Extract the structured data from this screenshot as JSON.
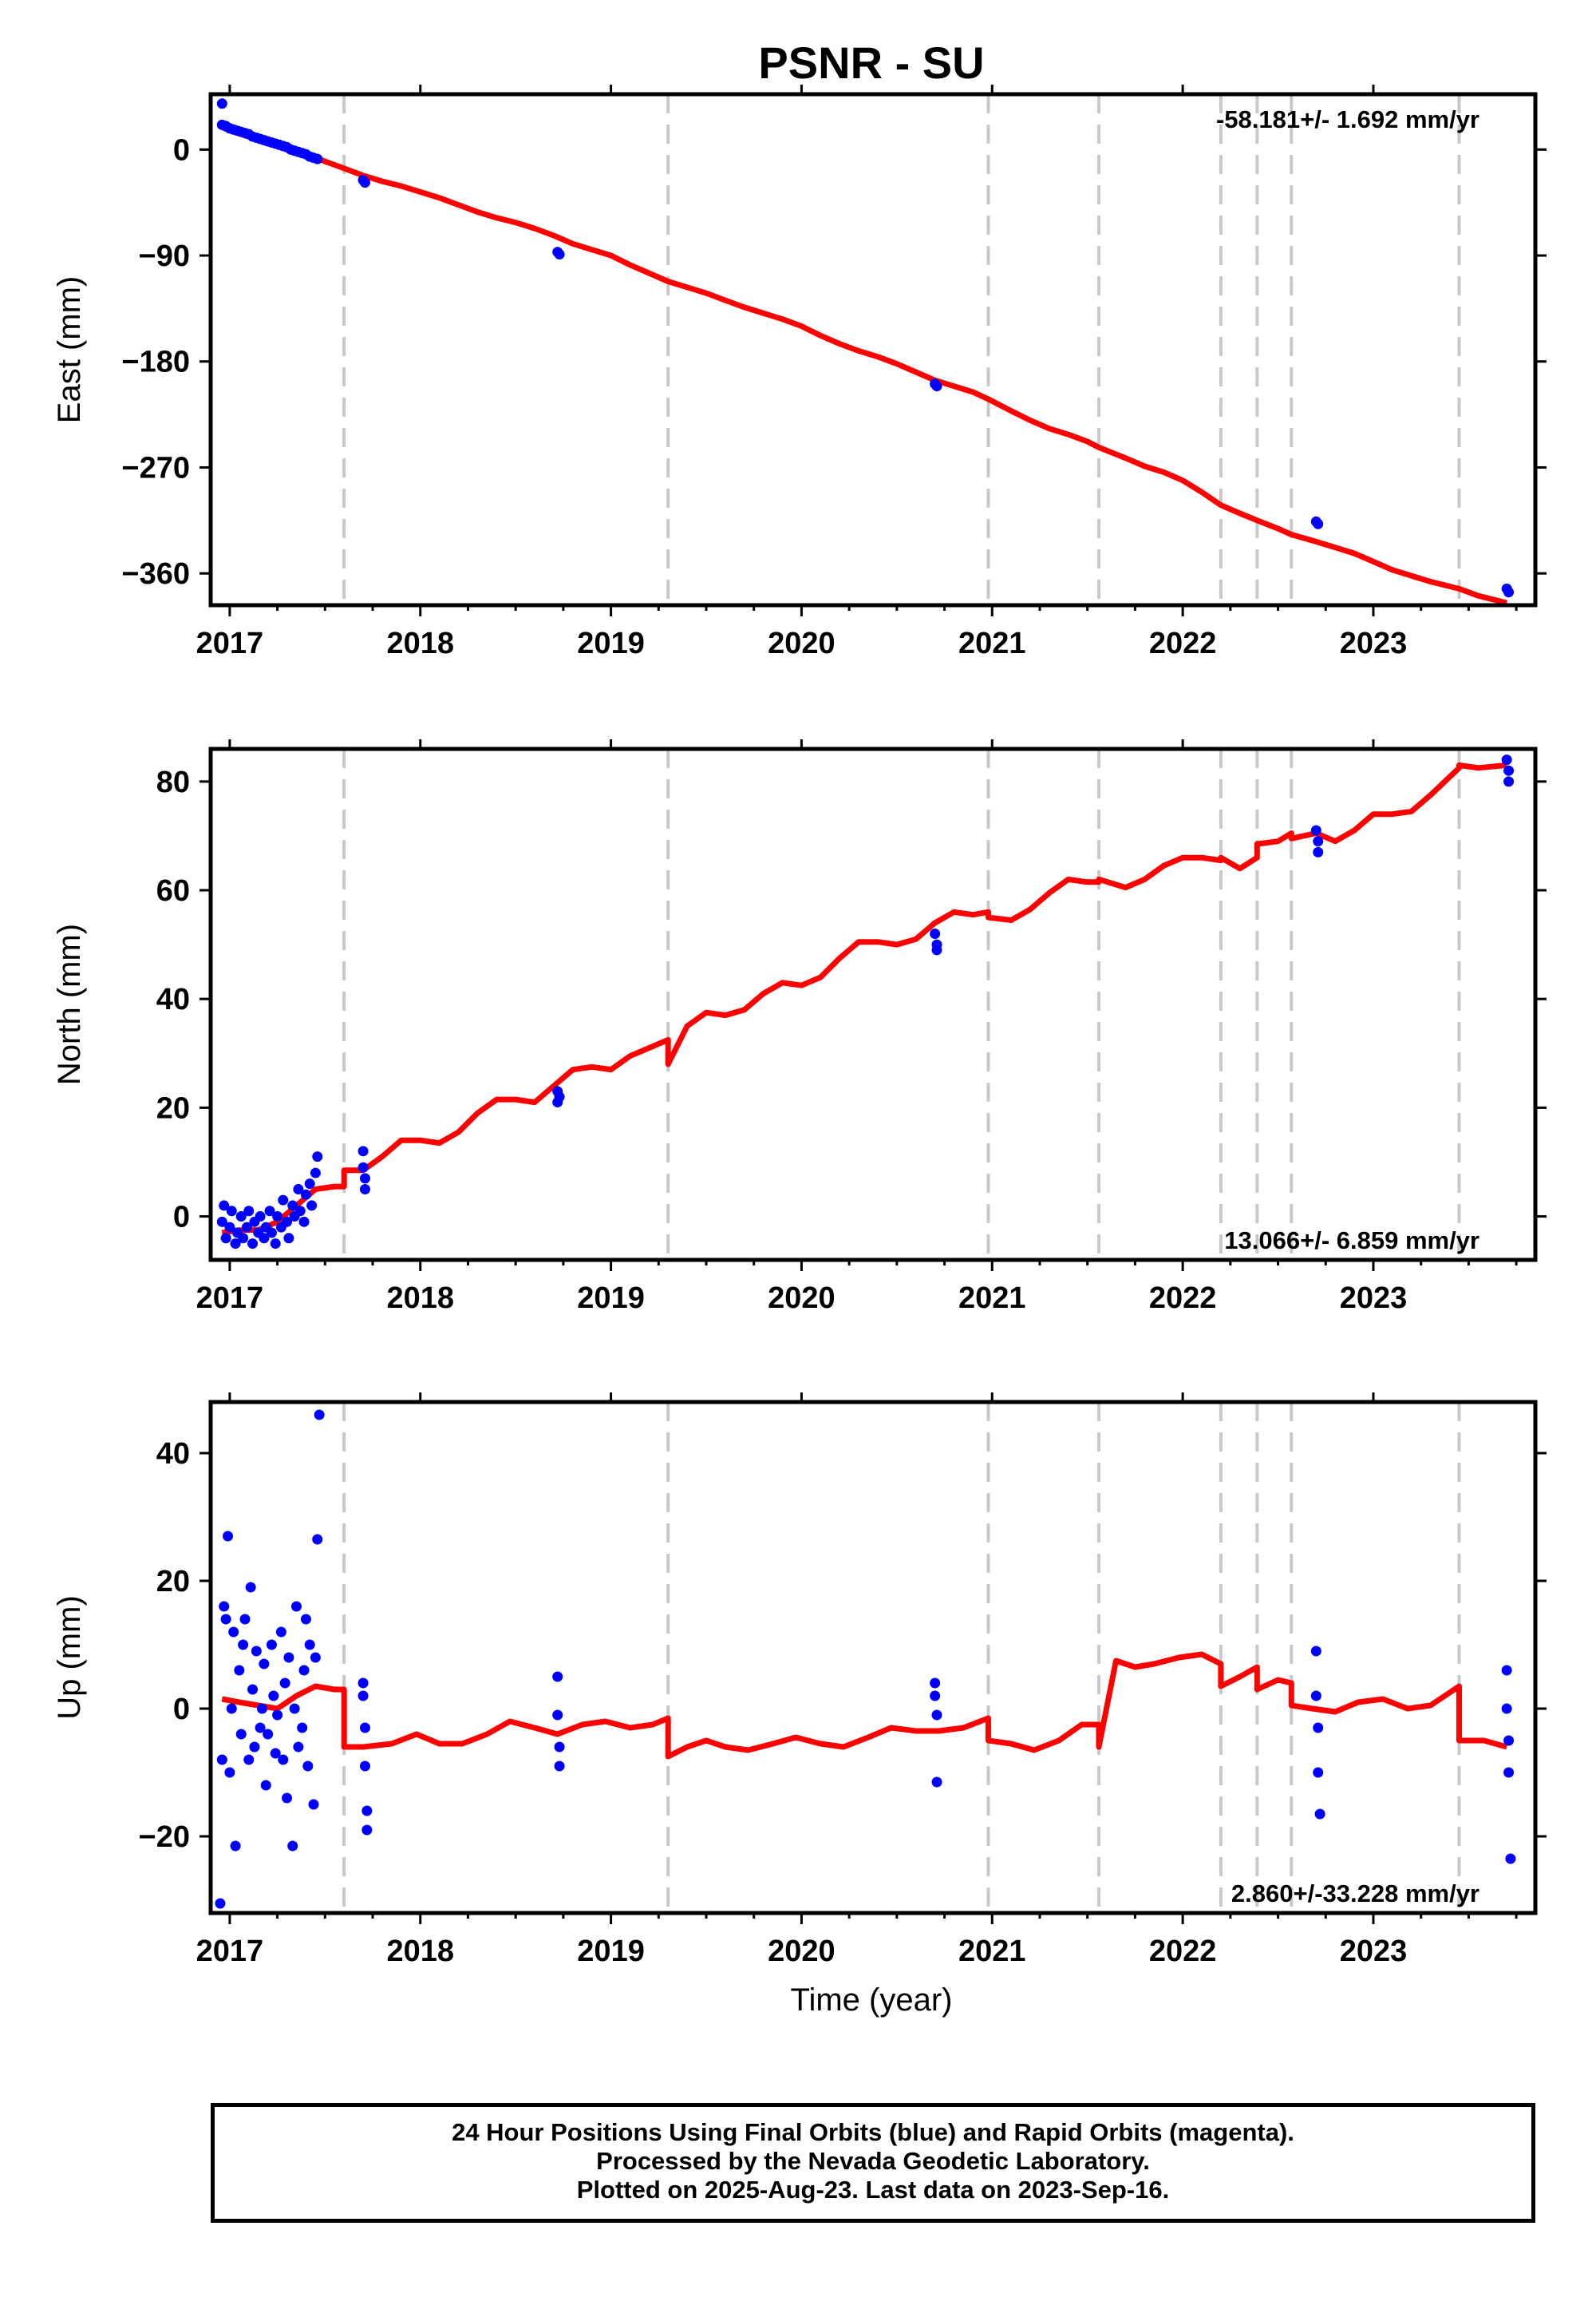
{
  "figure": {
    "title": "PSNR - SU",
    "xlabel": "Time (year)",
    "caption": [
      "24 Hour Positions Using Final Orbits (blue) and Rapid Orbits (magenta).",
      "Processed by the Nevada Geodetic Laboratory.",
      "Plotted on 2025-Aug-23. Last data on 2023-Sep-16."
    ],
    "colors": {
      "final": "#0000ff",
      "model": "#ff0000",
      "event": "#c8c8c8",
      "frame": "#000000"
    }
  },
  "chart_data": [
    {
      "type": "scatter",
      "ylabel": "East (mm)",
      "rate_text": "-58.181+/- 1.692 mm/yr",
      "rate_position": "top-right",
      "xlim": [
        2016.9,
        2023.85
      ],
      "ylim": [
        -387,
        47
      ],
      "xticks": [
        2017,
        2018,
        2019,
        2020,
        2021,
        2022,
        2023
      ],
      "xtick_labels": [
        "2017",
        "2018",
        "2019",
        "2020",
        "2021",
        "2022",
        "2023"
      ],
      "yticks": [
        0,
        -90,
        -180,
        -270,
        -360
      ],
      "ytick_labels": [
        "0",
        "−90",
        "−180",
        "−270",
        "−360"
      ],
      "event_lines": [
        2017.6,
        2019.3,
        2020.98,
        2021.56,
        2022.2,
        2022.39,
        2022.57,
        2023.45
      ],
      "series": [
        {
          "role": "final",
          "x": [
            2016.96,
            2016.96,
            2016.98,
            2017.0,
            2017.02,
            2017.04,
            2017.06,
            2017.08,
            2017.1,
            2017.12,
            2017.14,
            2017.16,
            2017.18,
            2017.2,
            2017.22,
            2017.24,
            2017.26,
            2017.28,
            2017.3,
            2017.32,
            2017.34,
            2017.36,
            2017.38,
            2017.4,
            2017.42,
            2017.44,
            2017.46,
            2017.7,
            2017.71,
            2018.72,
            2018.73,
            2020.7,
            2020.71,
            2022.7,
            2022.71,
            2023.7,
            2023.71
          ],
          "y": [
            39,
            21,
            20,
            18,
            17,
            16,
            15,
            14,
            13,
            11,
            10,
            9,
            8,
            7,
            6,
            5,
            4,
            3,
            2,
            0,
            -1,
            -2,
            -3,
            -4,
            -6,
            -7,
            -8,
            -26,
            -28,
            -87,
            -89,
            -199,
            -201,
            -316,
            -318,
            -373,
            -376
          ]
        },
        {
          "role": "model",
          "x": [
            2016.96,
            2017.0,
            2017.1,
            2017.2,
            2017.3,
            2017.4,
            2017.5,
            2017.6,
            2017.7,
            2017.8,
            2017.9,
            2018.0,
            2018.1,
            2018.2,
            2018.3,
            2018.4,
            2018.5,
            2018.6,
            2018.7,
            2018.8,
            2018.9,
            2019.0,
            2019.1,
            2019.2,
            2019.3,
            2019.4,
            2019.5,
            2019.6,
            2019.7,
            2019.8,
            2019.9,
            2020.0,
            2020.1,
            2020.2,
            2020.3,
            2020.4,
            2020.5,
            2020.6,
            2020.7,
            2020.8,
            2020.9,
            2020.98,
            2021.1,
            2021.2,
            2021.3,
            2021.4,
            2021.5,
            2021.56,
            2021.7,
            2021.8,
            2021.9,
            2022.0,
            2022.1,
            2022.2,
            2022.3,
            2022.39,
            2022.5,
            2022.57,
            2022.7,
            2022.8,
            2022.9,
            2023.0,
            2023.1,
            2023.2,
            2023.3,
            2023.45,
            2023.55,
            2023.7
          ],
          "y": [
            19,
            16,
            11,
            6,
            1,
            -4,
            -10,
            -16,
            -22,
            -27,
            -31,
            -36,
            -41,
            -47,
            -53,
            -58,
            -62,
            -67,
            -73,
            -80,
            -85,
            -90,
            -98,
            -105,
            -112,
            -117,
            -122,
            -128,
            -134,
            -139,
            -144,
            -150,
            -158,
            -165,
            -171,
            -176,
            -182,
            -189,
            -196,
            -201,
            -206,
            -212,
            -222,
            -230,
            -237,
            -242,
            -248,
            -253,
            -262,
            -269,
            -274,
            -281,
            -291,
            -302,
            -309,
            -315,
            -322,
            -327,
            -333,
            -338,
            -343,
            -350,
            -357,
            -362,
            -367,
            -373,
            -379,
            -385
          ]
        }
      ]
    },
    {
      "type": "scatter",
      "ylabel": "North (mm)",
      "rate_text": "13.066+/- 6.859 mm/yr",
      "rate_position": "bottom-right",
      "xlim": [
        2016.9,
        2023.85
      ],
      "ylim": [
        -8,
        86
      ],
      "xticks": [
        2017,
        2018,
        2019,
        2020,
        2021,
        2022,
        2023
      ],
      "xtick_labels": [
        "2017",
        "2018",
        "2019",
        "2020",
        "2021",
        "2022",
        "2023"
      ],
      "yticks": [
        0,
        20,
        40,
        60,
        80
      ],
      "ytick_labels": [
        "0",
        "20",
        "40",
        "60",
        "80"
      ],
      "event_lines": [
        2017.6,
        2019.3,
        2020.98,
        2021.56,
        2022.2,
        2022.39,
        2022.57,
        2023.45
      ],
      "series": [
        {
          "role": "final",
          "x": [
            2016.96,
            2016.97,
            2016.98,
            2017.0,
            2017.01,
            2017.03,
            2017.04,
            2017.06,
            2017.07,
            2017.09,
            2017.1,
            2017.12,
            2017.13,
            2017.15,
            2017.16,
            2017.18,
            2017.19,
            2017.21,
            2017.22,
            2017.24,
            2017.25,
            2017.27,
            2017.28,
            2017.3,
            2017.31,
            2017.33,
            2017.34,
            2017.36,
            2017.37,
            2017.39,
            2017.4,
            2017.42,
            2017.43,
            2017.45,
            2017.46,
            2017.7,
            2017.7,
            2017.71,
            2017.71,
            2018.72,
            2018.72,
            2018.73,
            2020.7,
            2020.71,
            2020.71,
            2022.7,
            2022.71,
            2022.71,
            2023.7,
            2023.71,
            2023.71
          ],
          "y": [
            -1,
            2,
            -4,
            -2,
            1,
            -5,
            -3,
            0,
            -4,
            -2,
            1,
            -5,
            -1,
            -3,
            0,
            -4,
            -2,
            1,
            -3,
            -5,
            0,
            -2,
            3,
            -1,
            -4,
            2,
            0,
            5,
            1,
            -1,
            4,
            6,
            2,
            8,
            11,
            12,
            9,
            7,
            5,
            23,
            21,
            22,
            52,
            50,
            49,
            71,
            69,
            67,
            84,
            82,
            80
          ]
        },
        {
          "role": "model",
          "x": [
            2016.96,
            2017.05,
            2017.15,
            2017.25,
            2017.35,
            2017.45,
            2017.55,
            2017.6,
            2017.6,
            2017.7,
            2017.8,
            2017.9,
            2018.0,
            2018.1,
            2018.2,
            2018.3,
            2018.4,
            2018.5,
            2018.6,
            2018.7,
            2018.8,
            2018.9,
            2019.0,
            2019.1,
            2019.2,
            2019.3,
            2019.3,
            2019.4,
            2019.5,
            2019.6,
            2019.7,
            2019.8,
            2019.9,
            2020.0,
            2020.1,
            2020.2,
            2020.3,
            2020.4,
            2020.5,
            2020.6,
            2020.7,
            2020.8,
            2020.9,
            2020.98,
            2020.98,
            2021.1,
            2021.2,
            2021.3,
            2021.4,
            2021.5,
            2021.56,
            2021.56,
            2021.7,
            2021.8,
            2021.9,
            2022.0,
            2022.1,
            2022.2,
            2022.2,
            2022.3,
            2022.39,
            2022.39,
            2022.5,
            2022.57,
            2022.57,
            2022.7,
            2022.8,
            2022.9,
            2023.0,
            2023.1,
            2023.2,
            2023.3,
            2023.45,
            2023.45,
            2023.55,
            2023.7
          ],
          "y": [
            -3,
            -2.5,
            -2.5,
            -1,
            2,
            5,
            5.5,
            5.5,
            8.5,
            8.5,
            11,
            14,
            14,
            13.5,
            15.5,
            19,
            21.5,
            21.5,
            21,
            24,
            27,
            27.5,
            27,
            29.5,
            31,
            32.5,
            28,
            35,
            37.5,
            37,
            38,
            41,
            43,
            42.5,
            44,
            47.5,
            50.5,
            50.5,
            50,
            51,
            54,
            56,
            55.5,
            56,
            55,
            54.5,
            56.5,
            59.5,
            62,
            61.5,
            61.5,
            62,
            60.5,
            62,
            64.5,
            66,
            66,
            65.5,
            66,
            64,
            66,
            68.5,
            69,
            70.5,
            69.5,
            70.5,
            69,
            71,
            74,
            74,
            74.5,
            77.5,
            82.5,
            83,
            82.5,
            83
          ]
        }
      ]
    },
    {
      "type": "scatter",
      "ylabel": "Up (mm)",
      "rate_text": "2.860+/-33.228 mm/yr",
      "rate_position": "bottom-right",
      "xlim": [
        2016.9,
        2023.85
      ],
      "ylim": [
        -32,
        48
      ],
      "xticks": [
        2017,
        2018,
        2019,
        2020,
        2021,
        2022,
        2023
      ],
      "xtick_labels": [
        "2017",
        "2018",
        "2019",
        "2020",
        "2021",
        "2022",
        "2023"
      ],
      "yticks": [
        40,
        20,
        0,
        -20
      ],
      "ytick_labels": [
        "40",
        "20",
        "0",
        "−20"
      ],
      "event_lines": [
        2017.6,
        2019.3,
        2020.98,
        2021.56,
        2022.2,
        2022.39,
        2022.57,
        2023.45
      ],
      "series": [
        {
          "role": "final",
          "x": [
            2016.95,
            2016.96,
            2016.97,
            2016.98,
            2016.99,
            2017.0,
            2017.01,
            2017.02,
            2017.03,
            2017.05,
            2017.06,
            2017.07,
            2017.08,
            2017.1,
            2017.11,
            2017.12,
            2017.13,
            2017.14,
            2017.16,
            2017.17,
            2017.18,
            2017.19,
            2017.2,
            2017.22,
            2017.23,
            2017.24,
            2017.25,
            2017.27,
            2017.28,
            2017.29,
            2017.3,
            2017.31,
            2017.33,
            2017.34,
            2017.35,
            2017.36,
            2017.38,
            2017.39,
            2017.4,
            2017.41,
            2017.42,
            2017.44,
            2017.45,
            2017.46,
            2017.47,
            2017.7,
            2017.7,
            2017.71,
            2017.71,
            2017.72,
            2017.72,
            2018.72,
            2018.72,
            2018.73,
            2018.73,
            2020.7,
            2020.7,
            2020.71,
            2020.71,
            2022.7,
            2022.7,
            2022.71,
            2022.71,
            2022.72,
            2023.7,
            2023.7,
            2023.71,
            2023.71,
            2023.72
          ],
          "y": [
            -30.5,
            -8,
            16,
            14,
            27,
            -10,
            0,
            12,
            -21.5,
            6,
            -4,
            10,
            14,
            -8,
            19,
            3,
            -6,
            9,
            -3,
            0,
            7,
            -12,
            -4,
            10,
            2,
            -7,
            -1,
            12,
            -8,
            4,
            -14,
            8,
            -21.5,
            0,
            16,
            -6,
            -3,
            6,
            14,
            -9,
            10,
            -15,
            8,
            26.5,
            46,
            4,
            2,
            -3,
            -9,
            -16,
            -19,
            5,
            -1,
            -6,
            -9,
            4,
            2,
            -1,
            -11.5,
            9,
            2,
            -3,
            -10,
            -16.5,
            6,
            0,
            -5,
            -10,
            -23.5
          ]
        },
        {
          "role": "model",
          "x": [
            2016.96,
            2017.05,
            2017.15,
            2017.25,
            2017.35,
            2017.45,
            2017.55,
            2017.6,
            2017.6,
            2017.7,
            2017.85,
            2017.98,
            2018.1,
            2018.22,
            2018.35,
            2018.47,
            2018.6,
            2018.72,
            2018.85,
            2018.97,
            2019.1,
            2019.22,
            2019.3,
            2019.3,
            2019.4,
            2019.5,
            2019.6,
            2019.72,
            2019.85,
            2019.97,
            2020.1,
            2020.22,
            2020.35,
            2020.47,
            2020.6,
            2020.72,
            2020.85,
            2020.98,
            2020.98,
            2021.1,
            2021.22,
            2021.35,
            2021.47,
            2021.56,
            2021.56,
            2021.65,
            2021.75,
            2021.85,
            2021.98,
            2022.1,
            2022.2,
            2022.2,
            2022.3,
            2022.39,
            2022.39,
            2022.5,
            2022.57,
            2022.57,
            2022.68,
            2022.8,
            2022.92,
            2023.05,
            2023.18,
            2023.3,
            2023.45,
            2023.45,
            2023.58,
            2023.7
          ],
          "y": [
            1.5,
            1,
            0.5,
            0,
            2,
            3.5,
            3,
            3,
            -6,
            -6,
            -5.5,
            -4,
            -5.5,
            -5.5,
            -4,
            -2,
            -3,
            -4,
            -2.5,
            -2,
            -3,
            -2.5,
            -1.5,
            -7.5,
            -6,
            -5,
            -6,
            -6.5,
            -5.5,
            -4.5,
            -5.5,
            -6,
            -4.5,
            -3,
            -3.5,
            -3.5,
            -3,
            -1.5,
            -5,
            -5.5,
            -6.5,
            -5,
            -2.5,
            -2.5,
            -6,
            7.5,
            6.5,
            7,
            8,
            8.5,
            7,
            3.5,
            5,
            6.5,
            3,
            4.5,
            4,
            0.5,
            0,
            -0.5,
            1,
            1.5,
            0,
            0.5,
            3.5,
            -5,
            -5,
            -6
          ]
        }
      ]
    }
  ]
}
